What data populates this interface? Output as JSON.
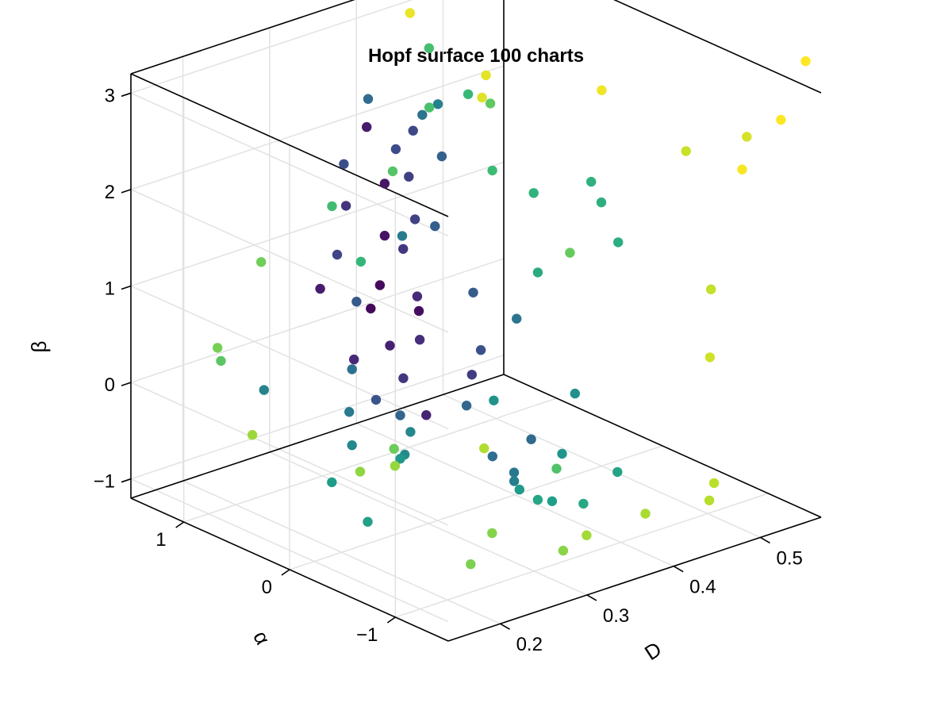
{
  "chart_data": {
    "type": "scatter",
    "title": "Hopf surface 100 charts",
    "projection": "3d",
    "colormap": "viridis",
    "color_by": "point index",
    "axes": {
      "x": {
        "label": "D",
        "ticks": [
          0.2,
          0.3,
          0.4,
          0.5
        ],
        "tick_labels": [
          "0.2",
          "0.3",
          "0.4",
          "0.5"
        ],
        "range": [
          0.14,
          0.57
        ]
      },
      "y": {
        "label": "α",
        "ticks": [
          1,
          0,
          -1
        ],
        "tick_labels": [
          "1",
          "0",
          "−1"
        ],
        "range": [
          1.5,
          -1.5
        ]
      },
      "z": {
        "label": "β",
        "ticks": [
          -1,
          0,
          1,
          2,
          3
        ],
        "tick_labels": [
          "−1",
          "0",
          "1",
          "2",
          "3"
        ],
        "range": [
          -1.2,
          3.2
        ]
      }
    },
    "grid": true,
    "legend": "none",
    "points": [
      {
        "D": 0.33,
        "alpha": 0.79,
        "beta": 0.55,
        "c": 0.02
      },
      {
        "D": 0.332,
        "alpha": 0.72,
        "beta": 0.82,
        "c": 0.03
      },
      {
        "D": 0.344,
        "alpha": 0.45,
        "beta": 0.65,
        "c": 0.04
      },
      {
        "D": 0.34,
        "alpha": 0.74,
        "beta": 1.3,
        "c": 0.05
      },
      {
        "D": 0.357,
        "alpha": 0.88,
        "beta": 1.72,
        "c": 0.06
      },
      {
        "D": 0.346,
        "alpha": 0.96,
        "beta": 2.3,
        "c": 0.07
      },
      {
        "D": 0.29,
        "alpha": 0.94,
        "beta": 0.8,
        "c": 0.08
      },
      {
        "D": 0.335,
        "alpha": 0.65,
        "beta": 0.22,
        "c": 0.09
      },
      {
        "D": 0.322,
        "alpha": 0.2,
        "beta": -0.24,
        "c": 0.1
      },
      {
        "D": 0.285,
        "alpha": 0.58,
        "beta": 0.26,
        "c": 0.11
      },
      {
        "D": 0.336,
        "alpha": 0.4,
        "beta": 0.85,
        "c": 0.12
      },
      {
        "D": 0.345,
        "alpha": 0.45,
        "beta": 0.35,
        "c": 0.13
      },
      {
        "D": 0.31,
        "alpha": 0.86,
        "beta": 1.64,
        "c": 0.15
      },
      {
        "D": 0.32,
        "alpha": 0.4,
        "beta": 0.05,
        "c": 0.16
      },
      {
        "D": 0.354,
        "alpha": 0.68,
        "beta": 1.15,
        "c": 0.17
      },
      {
        "D": 0.382,
        "alpha": 0.26,
        "beta": -0.03,
        "c": 0.18
      },
      {
        "D": 0.369,
        "alpha": 0.75,
        "beta": 1.82,
        "c": 0.19
      },
      {
        "D": 0.37,
        "alpha": 0.7,
        "beta": 1.4,
        "c": 0.2
      },
      {
        "D": 0.262,
        "alpha": 0.55,
        "beta": 1.43,
        "c": 0.21
      },
      {
        "D": 0.38,
        "alpha": 0.8,
        "beta": 2.24,
        "c": 0.22
      },
      {
        "D": 0.354,
        "alpha": 0.75,
        "beta": 2.15,
        "c": 0.23
      },
      {
        "D": 0.316,
        "alpha": 0.93,
        "beta": 2.02,
        "c": 0.24
      },
      {
        "D": 0.413,
        "alpha": 0.43,
        "beta": 0.05,
        "c": 0.25
      },
      {
        "D": 0.28,
        "alpha": 0.33,
        "beta": -0.02,
        "c": 0.26
      },
      {
        "D": 0.288,
        "alpha": 0.58,
        "beta": 0.85,
        "c": 0.28
      },
      {
        "D": 0.403,
        "alpha": 0.42,
        "beta": 0.68,
        "c": 0.29
      },
      {
        "D": 0.376,
        "alpha": 0.56,
        "beta": 1.38,
        "c": 0.3
      },
      {
        "D": 0.418,
        "alpha": 0.84,
        "beta": 1.84,
        "c": 0.31
      },
      {
        "D": 0.303,
        "alpha": 0.29,
        "beta": -0.23,
        "c": 0.32
      },
      {
        "D": 0.36,
        "alpha": 0.13,
        "beta": -0.22,
        "c": 0.33
      },
      {
        "D": 0.376,
        "alpha": -0.35,
        "beta": -0.38,
        "c": 0.34
      },
      {
        "D": 0.394,
        "alpha": 1.34,
        "beta": 2.26,
        "c": 0.35
      },
      {
        "D": 0.335,
        "alpha": -0.32,
        "beta": -0.45,
        "c": 0.36
      },
      {
        "D": 0.262,
        "alpha": 0.41,
        "beta": 0.31,
        "c": 0.37
      },
      {
        "D": 0.398,
        "alpha": 0.86,
        "beta": 2.32,
        "c": 0.38
      },
      {
        "D": 0.436,
        "alpha": 0.28,
        "beta": 0.38,
        "c": 0.39
      },
      {
        "D": 0.344,
        "alpha": -0.45,
        "beta": -0.58,
        "c": 0.4
      },
      {
        "D": 0.26,
        "alpha": 0.42,
        "beta": -0.13,
        "c": 0.41
      },
      {
        "D": 0.337,
        "alpha": 0.55,
        "beta": 1.4,
        "c": 0.42
      },
      {
        "D": 0.327,
        "alpha": -0.59,
        "beta": -0.55,
        "c": 0.43
      },
      {
        "D": 0.427,
        "alpha": 0.95,
        "beta": 2.3,
        "c": 0.44
      },
      {
        "D": 0.213,
        "alpha": 0.84,
        "beta": 0.03,
        "c": 0.45
      },
      {
        "D": 0.338,
        "alpha": 0.48,
        "beta": -0.6,
        "c": 0.46
      },
      {
        "D": 0.234,
        "alpha": 0.18,
        "beta": -0.28,
        "c": 0.47
      },
      {
        "D": 0.268,
        "alpha": -0.04,
        "beta": -0.37,
        "c": 0.48
      },
      {
        "D": 0.407,
        "alpha": -0.51,
        "beta": 0.08,
        "c": 0.5
      },
      {
        "D": 0.323,
        "alpha": -0.43,
        "beta": 0.22,
        "c": 0.51
      },
      {
        "D": 0.375,
        "alpha": -0.65,
        "beta": -0.38,
        "c": 0.52
      },
      {
        "D": 0.303,
        "alpha": 0.29,
        "beta": -0.68,
        "c": 0.53
      },
      {
        "D": 0.321,
        "alpha": -0.69,
        "beta": -0.57,
        "c": 0.54
      },
      {
        "D": 0.24,
        "alpha": 0.42,
        "beta": -0.8,
        "c": 0.55
      },
      {
        "D": 0.361,
        "alpha": -0.67,
        "beta": -0.82,
        "c": 0.56
      },
      {
        "D": 0.224,
        "alpha": -0.05,
        "beta": -0.93,
        "c": 0.57
      },
      {
        "D": 0.412,
        "alpha": -0.87,
        "beta": -0.57,
        "c": 0.58
      },
      {
        "D": 0.375,
        "alpha": -0.42,
        "beta": -0.97,
        "c": 0.59
      },
      {
        "D": 0.374,
        "alpha": -0.86,
        "beta": -0.79,
        "c": 0.6
      },
      {
        "D": 0.386,
        "alpha": -0.33,
        "beta": 1.31,
        "c": 0.61
      },
      {
        "D": 0.414,
        "alpha": -0.86,
        "beta": 1.8,
        "c": 0.62
      },
      {
        "D": 0.402,
        "alpha": -0.8,
        "beta": 2.22,
        "c": 0.63
      },
      {
        "D": 0.4,
        "alpha": -0.72,
        "beta": 2.4,
        "c": 0.64
      },
      {
        "D": 0.452,
        "alpha": 0.25,
        "beta": 1.65,
        "c": 0.65
      },
      {
        "D": 0.293,
        "alpha": 0.58,
        "beta": 1.25,
        "c": 0.66
      },
      {
        "D": 0.446,
        "alpha": 0.82,
        "beta": 2.41,
        "c": 0.67
      },
      {
        "D": 0.408,
        "alpha": 0.28,
        "beta": 2.0,
        "c": 0.68
      },
      {
        "D": 0.256,
        "alpha": 0.55,
        "beta": 1.95,
        "c": 0.69
      },
      {
        "D": 0.407,
        "alpha": 0.87,
        "beta": 2.98,
        "c": 0.7
      },
      {
        "D": 0.395,
        "alpha": 0.77,
        "beta": 2.45,
        "c": 0.71
      },
      {
        "D": 0.432,
        "alpha": -0.13,
        "beta": -0.96,
        "c": 0.72
      },
      {
        "D": 0.409,
        "alpha": 1.23,
        "beta": 1.52,
        "c": 0.73
      },
      {
        "D": 0.206,
        "alpha": 1.19,
        "beta": 0.18,
        "c": 0.74
      },
      {
        "D": 0.413,
        "alpha": 0.34,
        "beta": 2.65,
        "c": 0.75
      },
      {
        "D": 0.395,
        "alpha": -0.56,
        "beta": 1.6,
        "c": 0.76
      },
      {
        "D": 0.241,
        "alpha": -0.16,
        "beta": -0.17,
        "c": 0.77
      },
      {
        "D": 0.239,
        "alpha": 1.08,
        "beta": 1.16,
        "c": 0.78
      },
      {
        "D": 0.196,
        "alpha": 1.14,
        "beta": 0.37,
        "c": 0.79
      },
      {
        "D": 0.261,
        "alpha": -0.72,
        "beta": -1.15,
        "c": 0.8
      },
      {
        "D": 0.287,
        "alpha": -0.71,
        "beta": -0.91,
        "c": 0.81
      },
      {
        "D": 0.314,
        "alpha": -1.16,
        "beta": -0.95,
        "c": 0.82
      },
      {
        "D": 0.219,
        "alpha": -0.02,
        "beta": -0.41,
        "c": 0.83
      },
      {
        "D": 0.336,
        "alpha": 0.61,
        "beta": -1.01,
        "c": 0.84
      },
      {
        "D": 0.213,
        "alpha": 0.95,
        "beta": -0.49,
        "c": 0.85
      },
      {
        "D": 0.402,
        "alpha": -0.66,
        "beta": -1.3,
        "c": 0.86
      },
      {
        "D": 0.443,
        "alpha": -0.88,
        "beta": -1.09,
        "c": 0.87
      },
      {
        "D": 0.357,
        "alpha": -0.06,
        "beta": -0.56,
        "c": 0.88
      },
      {
        "D": 0.485,
        "alpha": -1.14,
        "beta": -0.95,
        "c": 0.89
      },
      {
        "D": 0.521,
        "alpha": -0.89,
        "beta": -1.0,
        "c": 0.9
      },
      {
        "D": 0.493,
        "alpha": -1.09,
        "beta": 1.19,
        "c": 0.91
      },
      {
        "D": 0.474,
        "alpha": -1.01,
        "beta": 2.64,
        "c": 0.92
      },
      {
        "D": 0.476,
        "alpha": -1.22,
        "beta": 0.6,
        "c": 0.93
      },
      {
        "D": 0.527,
        "alpha": -1.15,
        "beta": 2.7,
        "c": 0.94
      },
      {
        "D": 0.429,
        "alpha": 0.55,
        "beta": 2.56,
        "c": 0.95
      },
      {
        "D": 0.419,
        "alpha": 0.43,
        "beta": 2.88,
        "c": 0.96
      },
      {
        "D": 0.446,
        "alpha": 1.37,
        "beta": 2.98,
        "c": 0.97
      },
      {
        "D": 0.478,
        "alpha": -0.18,
        "beta": 2.85,
        "c": 0.98
      },
      {
        "D": 0.507,
        "alpha": -1.27,
        "beta": 2.48,
        "c": 0.99
      },
      {
        "D": 0.542,
        "alpha": -1.35,
        "beta": 2.93,
        "c": 1.0
      },
      {
        "D": 0.568,
        "alpha": -1.37,
        "beta": 3.47,
        "c": 1.0
      }
    ]
  },
  "colors": {
    "viridis": [
      "#440154",
      "#482878",
      "#3e4989",
      "#31688e",
      "#26828e",
      "#1f9e89",
      "#35b779",
      "#6ece58",
      "#b5de2b",
      "#fde725"
    ],
    "frame": "#000000",
    "grid": "#e2e2e2"
  }
}
